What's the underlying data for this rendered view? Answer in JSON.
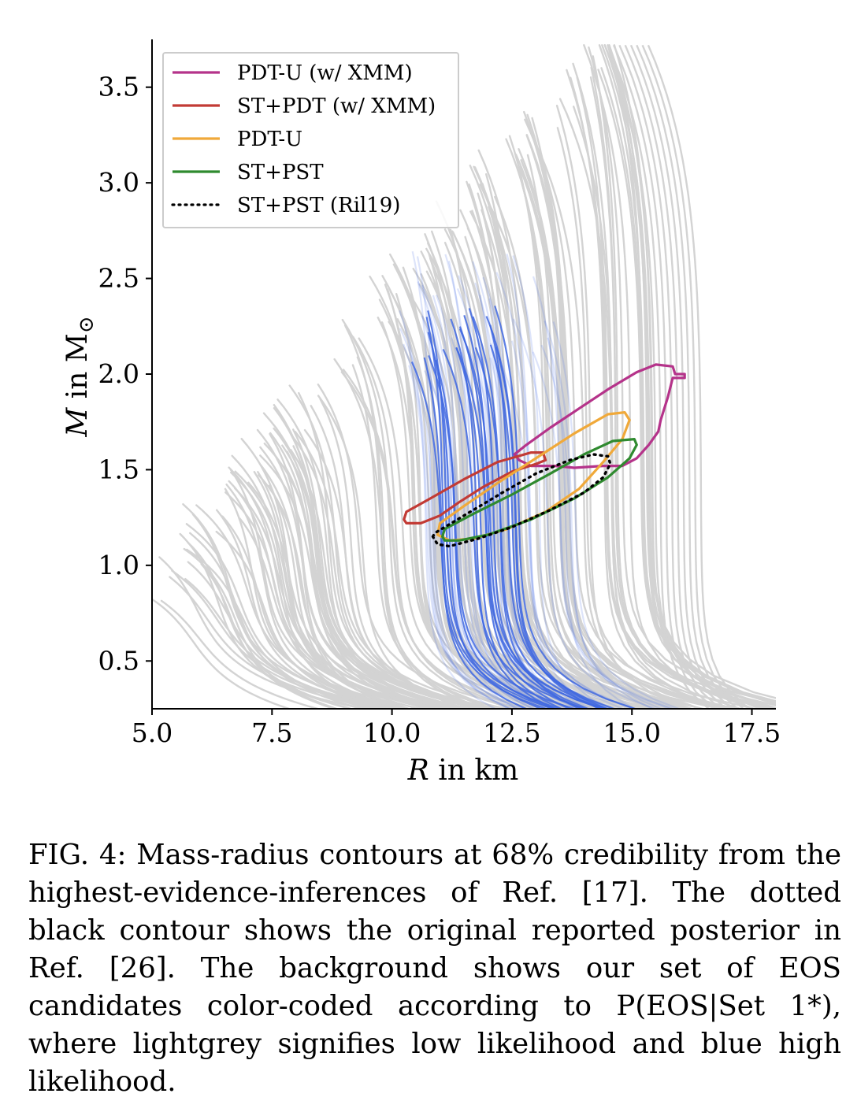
{
  "chart_data": {
    "type": "line",
    "xlabel_italic": "R",
    "xlabel_rest": " in km",
    "ylabel_italic": "M",
    "ylabel_rest": " in M",
    "ylabel_sub": "⊙",
    "xlim": [
      5.0,
      18.0
    ],
    "ylim": [
      0.25,
      3.75
    ],
    "xticks": [
      5.0,
      7.5,
      10.0,
      12.5,
      15.0,
      17.5
    ],
    "xtick_labels": [
      "5.0",
      "7.5",
      "10.0",
      "12.5",
      "15.0",
      "17.5"
    ],
    "yticks": [
      0.5,
      1.0,
      1.5,
      2.0,
      2.5,
      3.0,
      3.5
    ],
    "ytick_labels": [
      "0.5",
      "1.0",
      "1.5",
      "2.0",
      "2.5",
      "3.0",
      "3.5"
    ],
    "legend_position": "top-left",
    "background_colors": {
      "low_likelihood": "#d3d3d3",
      "high_likelihood": "#4169e1"
    },
    "series": [
      {
        "name": "PDT-U (w/ XMM)",
        "color": "#b5338a",
        "style": "solid",
        "contour": [
          [
            12.55,
            1.58
          ],
          [
            12.8,
            1.63
          ],
          [
            13.3,
            1.72
          ],
          [
            13.9,
            1.82
          ],
          [
            14.5,
            1.92
          ],
          [
            15.1,
            2.01
          ],
          [
            15.5,
            2.05
          ],
          [
            15.85,
            2.04
          ],
          [
            15.9,
            2.0
          ],
          [
            16.1,
            2.0
          ],
          [
            16.1,
            1.98
          ],
          [
            15.85,
            1.98
          ],
          [
            15.75,
            1.88
          ],
          [
            15.6,
            1.76
          ],
          [
            15.55,
            1.7
          ],
          [
            15.35,
            1.63
          ],
          [
            15.1,
            1.56
          ],
          [
            14.8,
            1.52
          ],
          [
            14.4,
            1.52
          ],
          [
            13.8,
            1.51
          ],
          [
            13.4,
            1.52
          ],
          [
            12.9,
            1.52
          ],
          [
            12.65,
            1.55
          ],
          [
            12.55,
            1.58
          ]
        ]
      },
      {
        "name": "ST+PDT (w/ XMM)",
        "color": "#c23b35",
        "style": "solid",
        "contour": [
          [
            10.25,
            1.24
          ],
          [
            10.3,
            1.28
          ],
          [
            10.8,
            1.35
          ],
          [
            11.5,
            1.45
          ],
          [
            12.2,
            1.54
          ],
          [
            12.9,
            1.59
          ],
          [
            13.15,
            1.59
          ],
          [
            13.2,
            1.55
          ],
          [
            13.0,
            1.53
          ],
          [
            12.5,
            1.49
          ],
          [
            11.9,
            1.41
          ],
          [
            11.4,
            1.33
          ],
          [
            11.0,
            1.26
          ],
          [
            10.6,
            1.22
          ],
          [
            10.3,
            1.22
          ],
          [
            10.25,
            1.24
          ]
        ]
      },
      {
        "name": "PDT-U",
        "color": "#f0a93a",
        "style": "solid",
        "contour": [
          [
            10.95,
            1.16
          ],
          [
            11.0,
            1.22
          ],
          [
            11.5,
            1.31
          ],
          [
            12.2,
            1.43
          ],
          [
            13.0,
            1.56
          ],
          [
            13.8,
            1.69
          ],
          [
            14.5,
            1.79
          ],
          [
            14.85,
            1.8
          ],
          [
            14.95,
            1.76
          ],
          [
            14.8,
            1.66
          ],
          [
            14.4,
            1.54
          ],
          [
            13.9,
            1.4
          ],
          [
            13.2,
            1.28
          ],
          [
            12.4,
            1.19
          ],
          [
            11.7,
            1.14
          ],
          [
            11.2,
            1.13
          ],
          [
            10.95,
            1.16
          ]
        ]
      },
      {
        "name": "ST+PST",
        "color": "#2f8a2f",
        "style": "solid",
        "contour": [
          [
            11.05,
            1.15
          ],
          [
            11.1,
            1.19
          ],
          [
            11.7,
            1.27
          ],
          [
            12.5,
            1.37
          ],
          [
            13.3,
            1.48
          ],
          [
            14.0,
            1.58
          ],
          [
            14.6,
            1.65
          ],
          [
            15.05,
            1.66
          ],
          [
            15.1,
            1.63
          ],
          [
            14.95,
            1.56
          ],
          [
            14.5,
            1.46
          ],
          [
            13.8,
            1.35
          ],
          [
            12.9,
            1.24
          ],
          [
            12.0,
            1.16
          ],
          [
            11.4,
            1.13
          ],
          [
            11.1,
            1.13
          ],
          [
            11.05,
            1.15
          ]
        ]
      },
      {
        "name": "ST+PST (Ril19)",
        "color": "#000000",
        "style": "dotted",
        "contour": [
          [
            10.85,
            1.15
          ],
          [
            10.9,
            1.17
          ],
          [
            11.5,
            1.26
          ],
          [
            12.3,
            1.38
          ],
          [
            13.0,
            1.48
          ],
          [
            13.7,
            1.55
          ],
          [
            14.2,
            1.58
          ],
          [
            14.5,
            1.57
          ],
          [
            14.55,
            1.53
          ],
          [
            14.4,
            1.46
          ],
          [
            14.0,
            1.38
          ],
          [
            13.3,
            1.29
          ],
          [
            12.5,
            1.2
          ],
          [
            11.8,
            1.14
          ],
          [
            11.2,
            1.1
          ],
          [
            10.95,
            1.11
          ],
          [
            10.85,
            1.15
          ]
        ]
      }
    ]
  },
  "caption": "FIG. 4: Mass-radius contours at 68% credibility from the highest-evidence-inferences of Ref. [17]. The dotted black contour shows the original reported posterior in Ref. [26]. The background shows our set of EOS candidates color-coded according to P(EOS|Set 1*), where lightgrey signifies low likelihood and blue high likelihood."
}
